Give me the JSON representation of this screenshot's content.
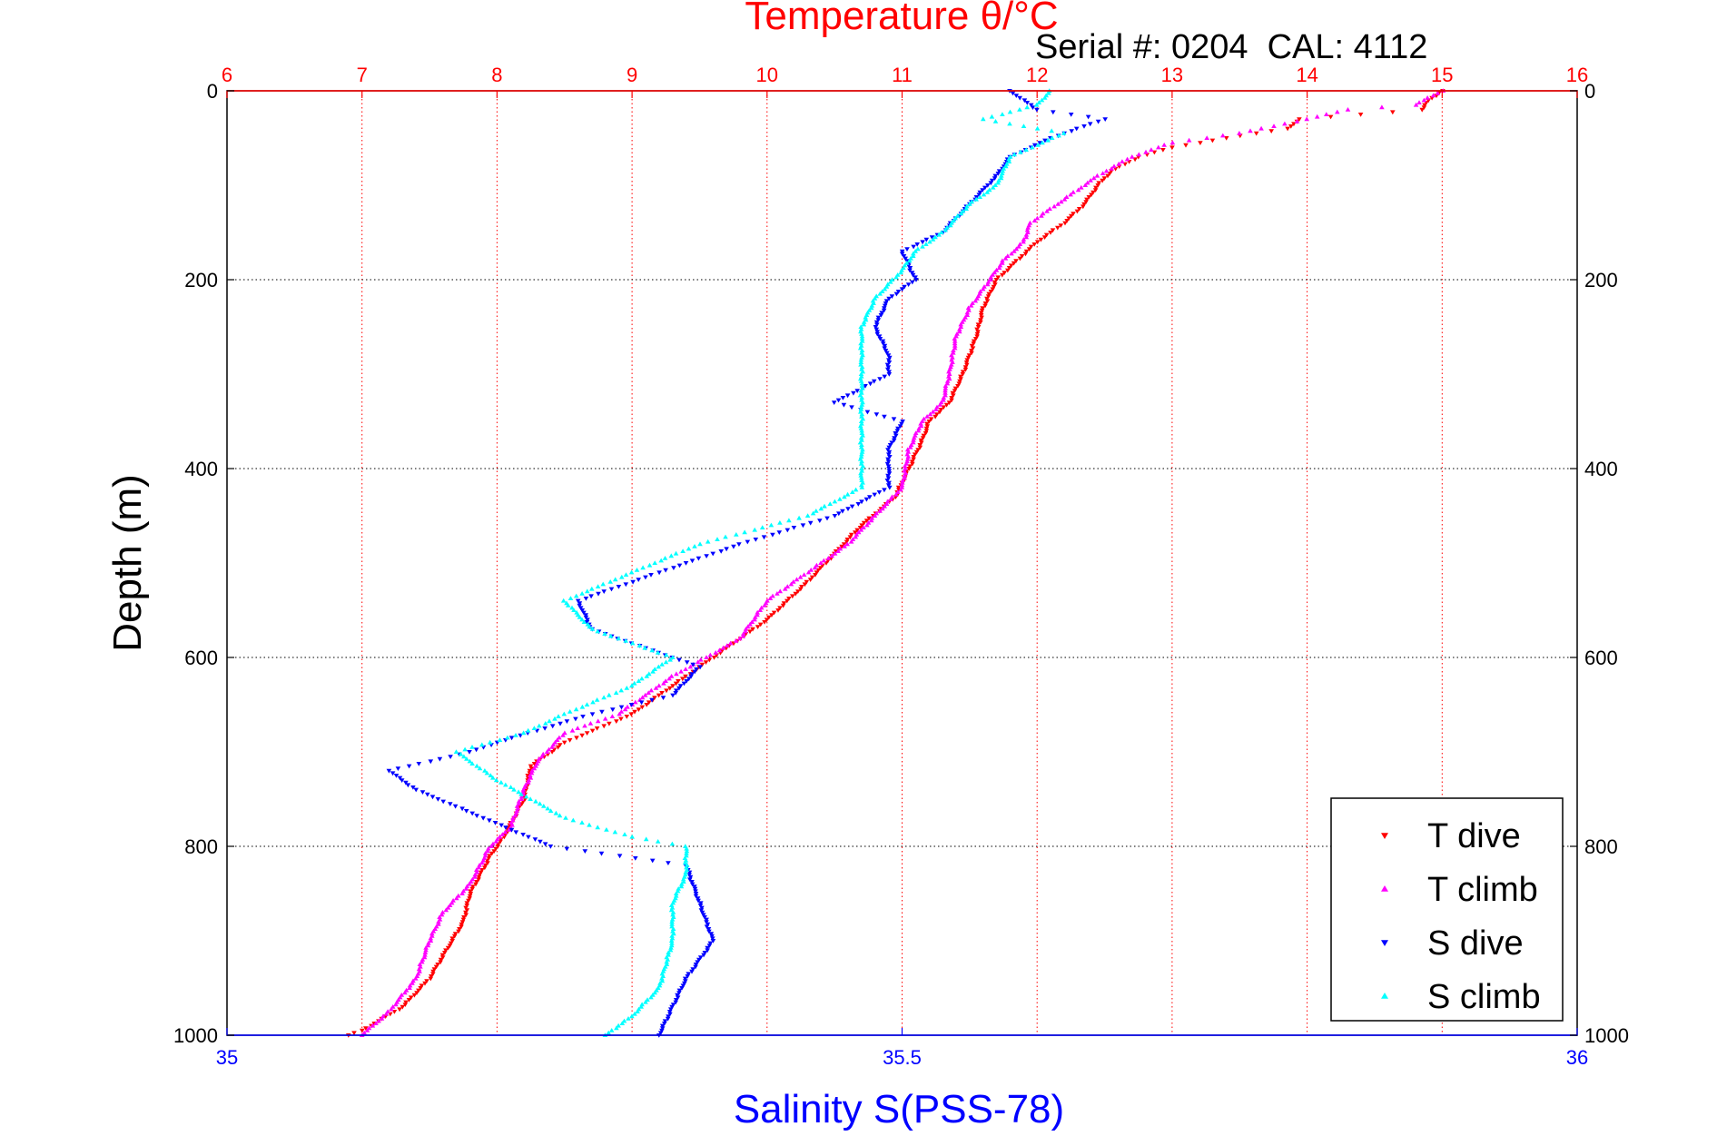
{
  "chart_data": {
    "type": "scatter",
    "title": "Temperature θ/°C",
    "annotation": "Serial #: 0204  CAL: 4112",
    "ylabel": "Depth (m)",
    "y_axis": {
      "ylim": [
        0,
        1000
      ],
      "reversed": true,
      "ticks": [
        0,
        200,
        400,
        600,
        800,
        1000
      ],
      "tick_labels": [
        "0",
        "200",
        "400",
        "600",
        "800",
        "1000"
      ]
    },
    "temperature_axis": {
      "label": "Temperature θ/°C",
      "position": "top",
      "lim": [
        6,
        16
      ],
      "ticks": [
        6,
        7,
        8,
        9,
        10,
        11,
        12,
        13,
        14,
        15,
        16
      ],
      "tick_labels": [
        "6",
        "7",
        "8",
        "9",
        "10",
        "11",
        "12",
        "13",
        "14",
        "15",
        "16"
      ],
      "color": "#ff0000",
      "grid": true
    },
    "salinity_axis": {
      "label": "Salinity S(PSS-78)",
      "position": "bottom",
      "lim": [
        35,
        36
      ],
      "ticks": [
        35,
        35.5,
        36
      ],
      "tick_labels": [
        "35",
        "35.5",
        "36"
      ],
      "color": "#0000ff"
    },
    "grid": {
      "vertical": "temperature-ticks",
      "horizontal": "depth-ticks",
      "vertical_color": "#ff0000",
      "horizontal_color": "#000000"
    },
    "legend": {
      "position": "bottom-right",
      "entries": [
        "T dive",
        "T climb",
        "S dive",
        "S climb"
      ]
    },
    "series": [
      {
        "name": "T dive",
        "axis": "temperature",
        "color": "#ff0000",
        "marker": "triangle-down",
        "points": [
          [
            15.0,
            0
          ],
          [
            14.9,
            10
          ],
          [
            14.85,
            20
          ],
          [
            13.95,
            30
          ],
          [
            13.85,
            40
          ],
          [
            13.4,
            50
          ],
          [
            13.0,
            60
          ],
          [
            12.75,
            70
          ],
          [
            12.55,
            85
          ],
          [
            12.45,
            100
          ],
          [
            12.35,
            120
          ],
          [
            12.2,
            140
          ],
          [
            12.0,
            160
          ],
          [
            11.85,
            180
          ],
          [
            11.7,
            200
          ],
          [
            11.6,
            230
          ],
          [
            11.55,
            260
          ],
          [
            11.45,
            300
          ],
          [
            11.35,
            330
          ],
          [
            11.2,
            350
          ],
          [
            11.15,
            370
          ],
          [
            11.05,
            400
          ],
          [
            10.95,
            430
          ],
          [
            10.7,
            460
          ],
          [
            10.5,
            490
          ],
          [
            10.3,
            520
          ],
          [
            10.0,
            560
          ],
          [
            9.7,
            590
          ],
          [
            9.4,
            620
          ],
          [
            9.0,
            660
          ],
          [
            8.5,
            690
          ],
          [
            8.25,
            715
          ],
          [
            8.2,
            750
          ],
          [
            8.05,
            790
          ],
          [
            7.95,
            810
          ],
          [
            7.8,
            850
          ],
          [
            7.75,
            880
          ],
          [
            7.5,
            940
          ],
          [
            7.3,
            970
          ],
          [
            7.0,
            995
          ],
          [
            6.9,
            1000
          ]
        ]
      },
      {
        "name": "T climb",
        "axis": "temperature",
        "color": "#ff00ff",
        "marker": "triangle-up",
        "points": [
          [
            15.0,
            0
          ],
          [
            14.8,
            15
          ],
          [
            14.3,
            20
          ],
          [
            14.0,
            30
          ],
          [
            13.5,
            45
          ],
          [
            13.0,
            55
          ],
          [
            12.7,
            70
          ],
          [
            12.45,
            90
          ],
          [
            12.2,
            115
          ],
          [
            11.95,
            140
          ],
          [
            11.9,
            160
          ],
          [
            11.75,
            180
          ],
          [
            11.65,
            200
          ],
          [
            11.5,
            230
          ],
          [
            11.4,
            260
          ],
          [
            11.35,
            300
          ],
          [
            11.3,
            330
          ],
          [
            11.15,
            350
          ],
          [
            11.05,
            380
          ],
          [
            11.0,
            420
          ],
          [
            10.8,
            450
          ],
          [
            10.6,
            480
          ],
          [
            10.3,
            510
          ],
          [
            10.0,
            540
          ],
          [
            9.8,
            580
          ],
          [
            9.3,
            620
          ],
          [
            8.9,
            660
          ],
          [
            8.5,
            680
          ],
          [
            8.3,
            710
          ],
          [
            8.2,
            740
          ],
          [
            8.1,
            780
          ],
          [
            7.95,
            800
          ],
          [
            7.8,
            840
          ],
          [
            7.6,
            870
          ],
          [
            7.5,
            900
          ],
          [
            7.4,
            940
          ],
          [
            7.2,
            975
          ],
          [
            7.0,
            1000
          ]
        ]
      },
      {
        "name": "S dive",
        "axis": "salinity",
        "color": "#0000ff",
        "marker": "triangle-down",
        "points": [
          [
            35.58,
            0
          ],
          [
            35.6,
            20
          ],
          [
            35.65,
            30
          ],
          [
            35.61,
            50
          ],
          [
            35.58,
            70
          ],
          [
            35.57,
            90
          ],
          [
            35.55,
            120
          ],
          [
            35.53,
            150
          ],
          [
            35.5,
            170
          ],
          [
            35.51,
            200
          ],
          [
            35.49,
            220
          ],
          [
            35.48,
            250
          ],
          [
            35.49,
            280
          ],
          [
            35.49,
            300
          ],
          [
            35.45,
            330
          ],
          [
            35.5,
            350
          ],
          [
            35.49,
            380
          ],
          [
            35.49,
            420
          ],
          [
            35.45,
            450
          ],
          [
            35.38,
            480
          ],
          [
            35.32,
            510
          ],
          [
            35.26,
            540
          ],
          [
            35.27,
            570
          ],
          [
            35.35,
            610
          ],
          [
            35.33,
            640
          ],
          [
            35.27,
            660
          ],
          [
            35.2,
            690
          ],
          [
            35.18,
            700
          ],
          [
            35.15,
            710
          ],
          [
            35.12,
            720
          ],
          [
            35.14,
            740
          ],
          [
            35.19,
            770
          ],
          [
            35.24,
            800
          ],
          [
            35.34,
            820
          ],
          [
            35.35,
            860
          ],
          [
            35.36,
            900
          ],
          [
            35.34,
            940
          ],
          [
            35.33,
            970
          ],
          [
            35.32,
            1000
          ]
        ]
      },
      {
        "name": "S climb",
        "axis": "salinity",
        "color": "#00ffff",
        "marker": "triangle-up",
        "points": [
          [
            35.61,
            0
          ],
          [
            35.6,
            15
          ],
          [
            35.56,
            30
          ],
          [
            35.62,
            45
          ],
          [
            35.58,
            70
          ],
          [
            35.57,
            100
          ],
          [
            35.55,
            120
          ],
          [
            35.53,
            150
          ],
          [
            35.51,
            170
          ],
          [
            35.5,
            190
          ],
          [
            35.48,
            220
          ],
          [
            35.47,
            250
          ],
          [
            35.47,
            300
          ],
          [
            35.47,
            330
          ],
          [
            35.47,
            360
          ],
          [
            35.47,
            390
          ],
          [
            35.47,
            420
          ],
          [
            35.43,
            450
          ],
          [
            35.35,
            480
          ],
          [
            35.3,
            510
          ],
          [
            35.25,
            540
          ],
          [
            35.27,
            570
          ],
          [
            35.33,
            600
          ],
          [
            35.3,
            630
          ],
          [
            35.25,
            660
          ],
          [
            35.22,
            680
          ],
          [
            35.17,
            700
          ],
          [
            35.2,
            730
          ],
          [
            35.25,
            770
          ],
          [
            35.3,
            790
          ],
          [
            35.34,
            800
          ],
          [
            35.34,
            830
          ],
          [
            35.33,
            860
          ],
          [
            35.33,
            900
          ],
          [
            35.32,
            950
          ],
          [
            35.3,
            980
          ],
          [
            35.28,
            1000
          ]
        ]
      }
    ]
  }
}
